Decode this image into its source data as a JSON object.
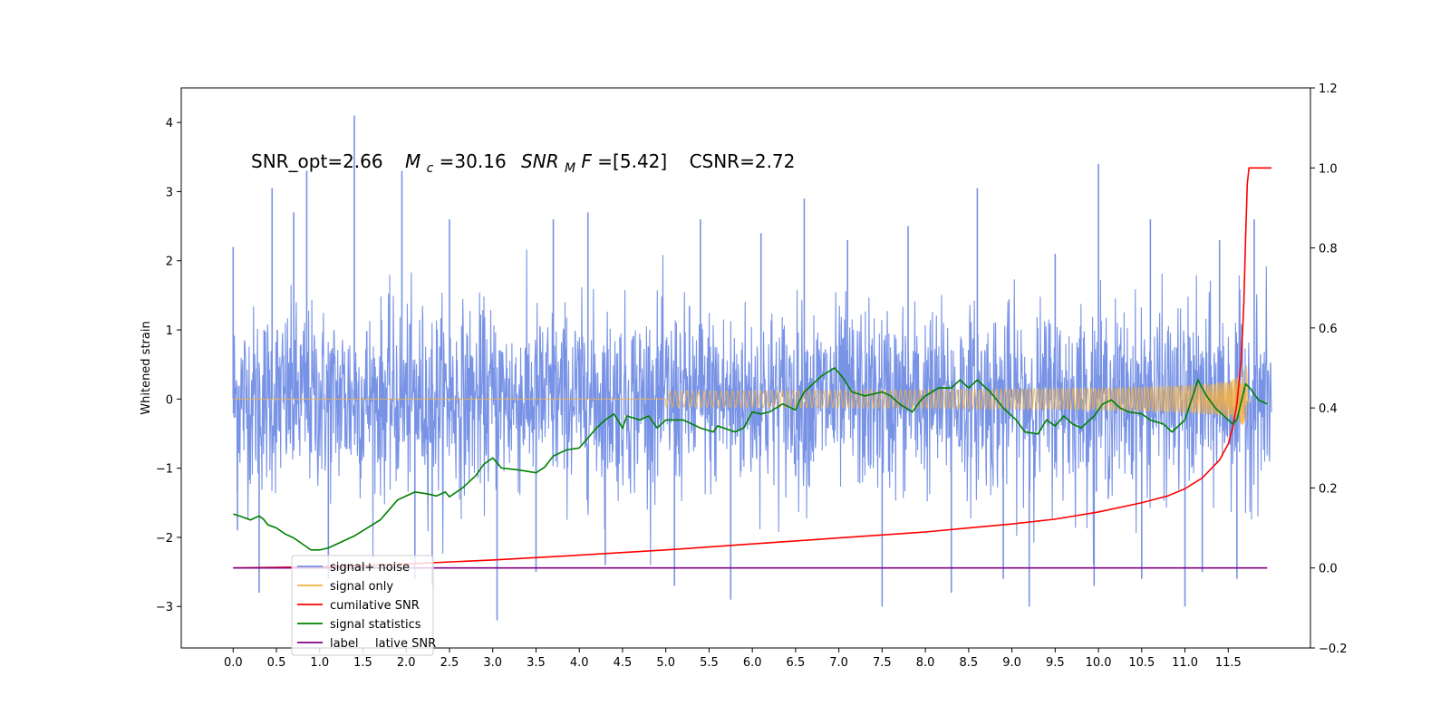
{
  "chart_data": {
    "type": "line",
    "ylabel": "Whitened strain",
    "annotation": {
      "snr_opt": "SNR_opt=2.66",
      "mc_sym": "M",
      "mc_sub": "c",
      "mc_val": "=30.16",
      "snrmf_sym": "SNR",
      "snrmf_sub": "M",
      "snrmf_f": "F",
      "snrmf_val": "=[5.42]",
      "csnr": "CSNR=2.72"
    },
    "x_ticks": [
      "0.0",
      "0.5",
      "1.0",
      "1.5",
      "2.0",
      "2.5",
      "3.0",
      "3.5",
      "4.0",
      "4.5",
      "5.0",
      "5.5",
      "6.0",
      "6.5",
      "7.0",
      "7.5",
      "8.0",
      "8.5",
      "9.0",
      "9.5",
      "10.0",
      "10.5",
      "11.0",
      "11.5"
    ],
    "left_axis": {
      "ylim": [
        -3.6,
        4.5
      ],
      "ticks": [
        "−3",
        "−2",
        "−1",
        "0",
        "1",
        "2",
        "3",
        "4"
      ]
    },
    "right_axis": {
      "ylim": [
        -0.2,
        1.2
      ],
      "ticks": [
        "−0.2",
        "0.0",
        "0.2",
        "0.4",
        "0.6",
        "0.8",
        "1.0",
        "1.2"
      ]
    },
    "xlim": [
      -0.6,
      12.45
    ],
    "legend": {
      "placement": "lower-left",
      "entries": [
        "signal+ noise",
        "signal only",
        "cumilative SNR",
        "signal statistics",
        "label"
      ],
      "ghost_text": "lative SNR"
    },
    "series": [
      {
        "name": "signal+ noise",
        "axis": "left",
        "color": "#7893e6",
        "style": "noise-band",
        "t_range": [
          0.0,
          12.0
        ],
        "typical_amplitude": 1.2,
        "spikes": [
          [
            0.0,
            2.2
          ],
          [
            0.05,
            -1.9
          ],
          [
            0.3,
            -2.8
          ],
          [
            0.45,
            3.05
          ],
          [
            0.7,
            2.7
          ],
          [
            0.85,
            3.3
          ],
          [
            1.1,
            -2.6
          ],
          [
            1.4,
            4.1
          ],
          [
            1.95,
            3.3
          ],
          [
            2.1,
            -2.6
          ],
          [
            2.3,
            -2.7
          ],
          [
            2.5,
            2.6
          ],
          [
            3.05,
            -3.2
          ],
          [
            3.5,
            -2.5
          ],
          [
            3.7,
            2.6
          ],
          [
            4.1,
            2.7
          ],
          [
            4.3,
            -2.4
          ],
          [
            5.1,
            -2.7
          ],
          [
            5.4,
            2.6
          ],
          [
            5.75,
            -2.9
          ],
          [
            6.1,
            2.4
          ],
          [
            6.6,
            2.9
          ],
          [
            7.1,
            2.3
          ],
          [
            7.5,
            -3.0
          ],
          [
            7.8,
            2.5
          ],
          [
            8.3,
            -2.8
          ],
          [
            8.6,
            3.05
          ],
          [
            8.9,
            -2.6
          ],
          [
            9.2,
            -3.0
          ],
          [
            9.5,
            2.1
          ],
          [
            9.95,
            -2.7
          ],
          [
            10.0,
            3.4
          ],
          [
            10.5,
            -2.6
          ],
          [
            10.6,
            2.6
          ],
          [
            11.0,
            -3.0
          ],
          [
            11.2,
            -2.5
          ],
          [
            11.4,
            2.3
          ],
          [
            11.6,
            -2.6
          ],
          [
            11.8,
            2.6
          ]
        ]
      },
      {
        "name": "signal only",
        "axis": "left",
        "color": "#f5b041",
        "style": "chirp",
        "t_range": [
          0.0,
          11.75
        ],
        "peak_amplitude": 0.5,
        "merger_time": 11.72
      },
      {
        "name": "cumilative SNR",
        "axis": "right",
        "color": "#ff0000",
        "points": [
          [
            0.0,
            0.0
          ],
          [
            1.0,
            0.003
          ],
          [
            2.0,
            0.01
          ],
          [
            3.0,
            0.02
          ],
          [
            4.0,
            0.032
          ],
          [
            5.0,
            0.045
          ],
          [
            6.0,
            0.06
          ],
          [
            7.0,
            0.075
          ],
          [
            8.0,
            0.09
          ],
          [
            8.5,
            0.1
          ],
          [
            9.0,
            0.11
          ],
          [
            9.5,
            0.122
          ],
          [
            10.0,
            0.14
          ],
          [
            10.5,
            0.163
          ],
          [
            10.8,
            0.18
          ],
          [
            11.0,
            0.198
          ],
          [
            11.2,
            0.225
          ],
          [
            11.4,
            0.27
          ],
          [
            11.5,
            0.31
          ],
          [
            11.55,
            0.35
          ],
          [
            11.6,
            0.41
          ],
          [
            11.65,
            0.52
          ],
          [
            11.68,
            0.66
          ],
          [
            11.7,
            0.82
          ],
          [
            11.72,
            0.96
          ],
          [
            11.74,
            1.0
          ],
          [
            12.0,
            1.0
          ]
        ]
      },
      {
        "name": "signal statistics",
        "axis": "right",
        "color": "#008000",
        "points": [
          [
            0.0,
            0.135
          ],
          [
            0.1,
            0.128
          ],
          [
            0.2,
            0.12
          ],
          [
            0.3,
            0.13
          ],
          [
            0.35,
            0.122
          ],
          [
            0.4,
            0.108
          ],
          [
            0.5,
            0.1
          ],
          [
            0.6,
            0.085
          ],
          [
            0.7,
            0.075
          ],
          [
            0.8,
            0.06
          ],
          [
            0.9,
            0.045
          ],
          [
            1.0,
            0.045
          ],
          [
            1.1,
            0.05
          ],
          [
            1.2,
            0.06
          ],
          [
            1.4,
            0.08
          ],
          [
            1.55,
            0.1
          ],
          [
            1.7,
            0.12
          ],
          [
            1.9,
            0.17
          ],
          [
            2.0,
            0.18
          ],
          [
            2.1,
            0.19
          ],
          [
            2.25,
            0.185
          ],
          [
            2.35,
            0.18
          ],
          [
            2.45,
            0.19
          ],
          [
            2.5,
            0.178
          ],
          [
            2.65,
            0.2
          ],
          [
            2.8,
            0.23
          ],
          [
            2.9,
            0.26
          ],
          [
            3.0,
            0.275
          ],
          [
            3.1,
            0.25
          ],
          [
            3.3,
            0.245
          ],
          [
            3.5,
            0.238
          ],
          [
            3.6,
            0.252
          ],
          [
            3.7,
            0.28
          ],
          [
            3.85,
            0.295
          ],
          [
            4.0,
            0.3
          ],
          [
            4.1,
            0.325
          ],
          [
            4.2,
            0.35
          ],
          [
            4.3,
            0.37
          ],
          [
            4.4,
            0.385
          ],
          [
            4.5,
            0.35
          ],
          [
            4.55,
            0.38
          ],
          [
            4.7,
            0.37
          ],
          [
            4.8,
            0.38
          ],
          [
            4.9,
            0.35
          ],
          [
            5.0,
            0.37
          ],
          [
            5.2,
            0.37
          ],
          [
            5.4,
            0.35
          ],
          [
            5.55,
            0.34
          ],
          [
            5.6,
            0.355
          ],
          [
            5.8,
            0.34
          ],
          [
            5.9,
            0.35
          ],
          [
            6.0,
            0.39
          ],
          [
            6.1,
            0.385
          ],
          [
            6.2,
            0.39
          ],
          [
            6.35,
            0.41
          ],
          [
            6.5,
            0.395
          ],
          [
            6.55,
            0.42
          ],
          [
            6.6,
            0.44
          ],
          [
            6.8,
            0.48
          ],
          [
            6.95,
            0.5
          ],
          [
            7.05,
            0.475
          ],
          [
            7.15,
            0.44
          ],
          [
            7.3,
            0.43
          ],
          [
            7.5,
            0.44
          ],
          [
            7.6,
            0.43
          ],
          [
            7.7,
            0.41
          ],
          [
            7.85,
            0.39
          ],
          [
            7.95,
            0.42
          ],
          [
            8.0,
            0.43
          ],
          [
            8.15,
            0.45
          ],
          [
            8.3,
            0.45
          ],
          [
            8.4,
            0.47
          ],
          [
            8.5,
            0.45
          ],
          [
            8.6,
            0.47
          ],
          [
            8.75,
            0.44
          ],
          [
            8.9,
            0.4
          ],
          [
            9.05,
            0.37
          ],
          [
            9.15,
            0.34
          ],
          [
            9.3,
            0.335
          ],
          [
            9.4,
            0.37
          ],
          [
            9.5,
            0.355
          ],
          [
            9.6,
            0.38
          ],
          [
            9.7,
            0.36
          ],
          [
            9.8,
            0.35
          ],
          [
            9.95,
            0.38
          ],
          [
            10.05,
            0.41
          ],
          [
            10.15,
            0.42
          ],
          [
            10.25,
            0.4
          ],
          [
            10.35,
            0.39
          ],
          [
            10.5,
            0.385
          ],
          [
            10.6,
            0.37
          ],
          [
            10.75,
            0.36
          ],
          [
            10.85,
            0.34
          ],
          [
            11.0,
            0.37
          ],
          [
            11.15,
            0.47
          ],
          [
            11.25,
            0.43
          ],
          [
            11.35,
            0.4
          ],
          [
            11.45,
            0.38
          ],
          [
            11.55,
            0.36
          ],
          [
            11.6,
            0.37
          ],
          [
            11.7,
            0.46
          ],
          [
            11.75,
            0.45
          ],
          [
            11.85,
            0.42
          ],
          [
            11.95,
            0.41
          ]
        ]
      },
      {
        "name": "label",
        "axis": "right",
        "color": "#800080",
        "points": [
          [
            0.0,
            0.0
          ],
          [
            11.95,
            0.0
          ]
        ]
      }
    ]
  }
}
